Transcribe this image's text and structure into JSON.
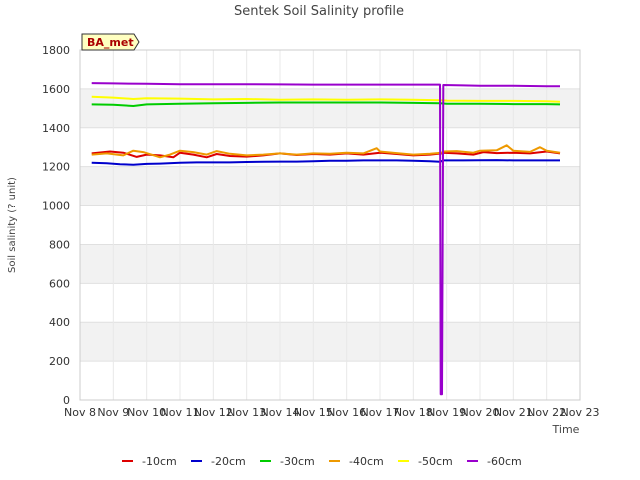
{
  "chart_data": {
    "type": "line",
    "title": "Sentek Soil Salinity profile",
    "xlabel": "Time",
    "ylabel": "Soil salinity (? unit)",
    "badge": "BA_met",
    "ylim": [
      0,
      1800
    ],
    "yticks": [
      0,
      200,
      400,
      600,
      800,
      1000,
      1200,
      1400,
      1600,
      1800
    ],
    "xlim": [
      0,
      15
    ],
    "xticks": [
      {
        "v": 0,
        "label": "Nov 8"
      },
      {
        "v": 1,
        "label": "Nov 9"
      },
      {
        "v": 2,
        "label": "Nov 10"
      },
      {
        "v": 3,
        "label": "Nov 11"
      },
      {
        "v": 4,
        "label": "Nov 12"
      },
      {
        "v": 5,
        "label": "Nov 13"
      },
      {
        "v": 6,
        "label": "Nov 14"
      },
      {
        "v": 7,
        "label": "Nov 15"
      },
      {
        "v": 8,
        "label": "Nov 16"
      },
      {
        "v": 9,
        "label": "Nov 17"
      },
      {
        "v": 10,
        "label": "Nov 18"
      },
      {
        "v": 11,
        "label": "Nov 19"
      },
      {
        "v": 12,
        "label": "Nov 20"
      },
      {
        "v": 13,
        "label": "Nov 21"
      },
      {
        "v": 14,
        "label": "Nov 22"
      },
      {
        "v": 15,
        "label": "Nov 23"
      }
    ],
    "series": [
      {
        "name": "-10cm",
        "color": "#dd0000",
        "x": [
          0.35,
          0.9,
          1.3,
          1.7,
          2.0,
          2.4,
          2.8,
          3.0,
          3.4,
          3.8,
          4.1,
          4.5,
          5.0,
          5.5,
          6.0,
          6.5,
          7.0,
          7.5,
          8.0,
          8.5,
          9.0,
          9.5,
          10.0,
          10.5,
          10.85,
          10.9,
          11.3,
          11.8,
          12.1,
          12.5,
          13.0,
          13.5,
          14.0,
          14.4
        ],
        "y": [
          1268,
          1278,
          1272,
          1250,
          1262,
          1258,
          1248,
          1272,
          1262,
          1248,
          1265,
          1255,
          1252,
          1258,
          1268,
          1260,
          1265,
          1262,
          1268,
          1262,
          1272,
          1265,
          1258,
          1262,
          1268,
          1272,
          1268,
          1262,
          1275,
          1270,
          1272,
          1268,
          1278,
          1268
        ]
      },
      {
        "name": "-20cm",
        "color": "#0000cc",
        "x": [
          0.35,
          0.8,
          1.2,
          1.6,
          2.0,
          2.4,
          3.0,
          3.5,
          4.0,
          4.5,
          5.0,
          5.5,
          6.0,
          6.5,
          7.0,
          7.5,
          8.0,
          8.5,
          9.0,
          9.5,
          10.0,
          10.5,
          10.8,
          10.9,
          11.5,
          12.0,
          12.5,
          13.0,
          13.5,
          14.0,
          14.4
        ],
        "y": [
          1220,
          1218,
          1212,
          1210,
          1214,
          1216,
          1220,
          1222,
          1222,
          1222,
          1224,
          1225,
          1226,
          1226,
          1228,
          1230,
          1230,
          1232,
          1232,
          1232,
          1230,
          1228,
          1225,
          1232,
          1232,
          1233,
          1234,
          1232,
          1232,
          1232,
          1232
        ]
      },
      {
        "name": "-30cm",
        "color": "#00cc00",
        "x": [
          0.35,
          1.0,
          1.6,
          2.0,
          3.0,
          4.0,
          5.0,
          6.0,
          7.0,
          8.0,
          9.0,
          10.0,
          10.8,
          11.0,
          12.0,
          13.0,
          14.0,
          14.4
        ],
        "y": [
          1520,
          1518,
          1512,
          1520,
          1524,
          1526,
          1528,
          1530,
          1530,
          1530,
          1530,
          1528,
          1526,
          1524,
          1524,
          1522,
          1522,
          1520
        ]
      },
      {
        "name": "-40cm",
        "color": "#ee9900",
        "x": [
          0.35,
          0.8,
          1.3,
          1.6,
          1.9,
          2.4,
          2.7,
          3.0,
          3.4,
          3.8,
          4.1,
          4.5,
          5.0,
          5.5,
          6.0,
          6.5,
          7.0,
          7.5,
          8.0,
          8.5,
          8.9,
          9.0,
          9.5,
          10.0,
          10.5,
          10.85,
          10.9,
          11.3,
          11.8,
          12.0,
          12.5,
          12.8,
          13.0,
          13.5,
          13.8,
          14.0,
          14.4
        ],
        "y": [
          1262,
          1268,
          1258,
          1282,
          1275,
          1248,
          1262,
          1282,
          1275,
          1262,
          1280,
          1266,
          1258,
          1262,
          1268,
          1262,
          1268,
          1266,
          1272,
          1268,
          1295,
          1278,
          1270,
          1262,
          1266,
          1272,
          1278,
          1280,
          1272,
          1282,
          1284,
          1310,
          1282,
          1276,
          1300,
          1282,
          1272
        ]
      },
      {
        "name": "-50cm",
        "color": "#ffff00",
        "x": [
          0.35,
          1.0,
          1.6,
          2.0,
          3.0,
          4.0,
          5.0,
          6.0,
          7.0,
          8.0,
          9.0,
          10.0,
          10.8,
          11.0,
          12.0,
          13.0,
          14.0,
          14.4
        ],
        "y": [
          1560,
          1555,
          1548,
          1552,
          1550,
          1546,
          1548,
          1544,
          1546,
          1544,
          1546,
          1544,
          1542,
          1540,
          1538,
          1538,
          1536,
          1534
        ]
      },
      {
        "name": "-60cm",
        "color": "#9900cc",
        "x": [
          0.35,
          1.0,
          2.0,
          3.0,
          4.0,
          5.0,
          6.0,
          7.0,
          8.0,
          9.0,
          10.0,
          10.8,
          10.82,
          10.86,
          10.9,
          11.5,
          12.0,
          13.0,
          14.0,
          14.4
        ],
        "y": [
          1630,
          1628,
          1626,
          1624,
          1624,
          1624,
          1623,
          1622,
          1622,
          1622,
          1622,
          1622,
          30,
          30,
          1620,
          1618,
          1616,
          1616,
          1614,
          1614
        ]
      }
    ]
  }
}
